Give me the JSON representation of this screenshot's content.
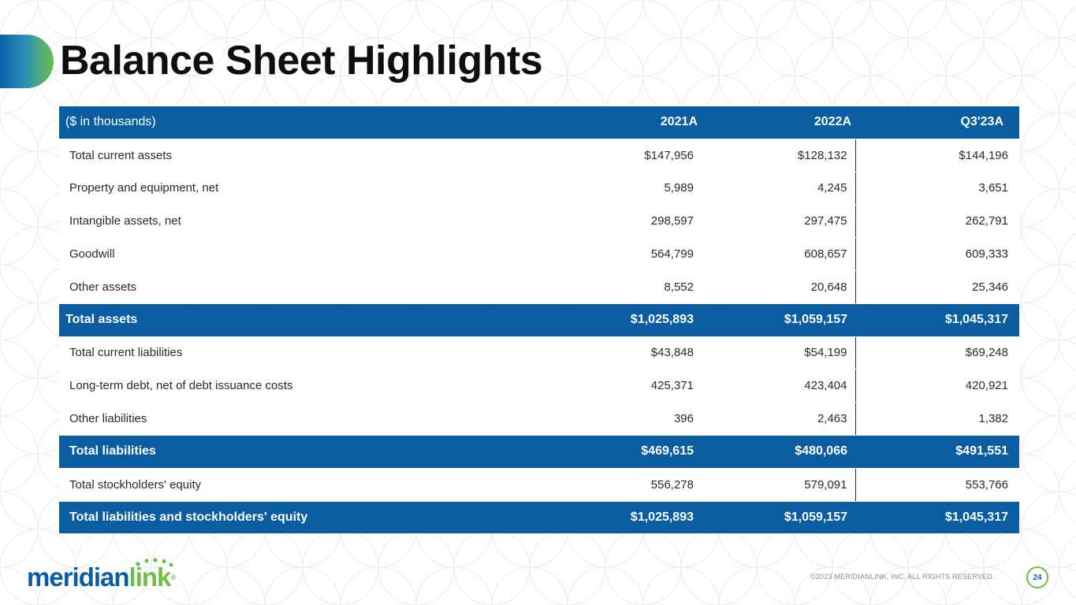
{
  "slide": {
    "title": "Balance Sheet Highlights",
    "copyright": "©2023 MERIDIANLINK, INC. ALL RIGHTS RESERVED.",
    "page_number": "24",
    "logo": {
      "text_primary": "meridian",
      "text_secondary": "link",
      "trademark": "®"
    },
    "colors": {
      "brand_blue": "#0b5da2",
      "brand_green": "#6cc04a"
    }
  },
  "table": {
    "header": {
      "label": "($ in thousands)",
      "columns": [
        "2021A",
        "2022A",
        "Q3'23A"
      ]
    },
    "rows": [
      {
        "label": "Total current assets",
        "values": [
          "$147,956",
          "$128,132",
          "$144,196"
        ],
        "total": false
      },
      {
        "label": "Property and equipment, net",
        "values": [
          "5,989",
          "4,245",
          "3,651"
        ],
        "total": false
      },
      {
        "label": "Intangible assets, net",
        "values": [
          "298,597",
          "297,475",
          "262,791"
        ],
        "total": false
      },
      {
        "label": "Goodwill",
        "values": [
          "564,799",
          "608,657",
          "609,333"
        ],
        "total": false
      },
      {
        "label": "Other assets",
        "values": [
          "8,552",
          "20,648",
          "25,346"
        ],
        "total": false
      },
      {
        "label": "Total assets",
        "values": [
          "$1,025,893",
          "$1,059,157",
          "$1,045,317"
        ],
        "total": true
      },
      {
        "label": "Total current liabilities",
        "values": [
          "$43,848",
          "$54,199",
          "$69,248"
        ],
        "total": false
      },
      {
        "label": "Long-term debt, net of debt issuance costs",
        "values": [
          "425,371",
          "423,404",
          "420,921"
        ],
        "total": false
      },
      {
        "label": "Other liabilities",
        "values": [
          "396",
          "2,463",
          "1,382"
        ],
        "total": false
      },
      {
        "label": "Total liabilities",
        "values": [
          "$469,615",
          "$480,066",
          "$491,551"
        ],
        "total": true
      },
      {
        "label": "Total stockholders' equity",
        "values": [
          "556,278",
          "579,091",
          "553,766"
        ],
        "total": false
      },
      {
        "label": "Total liabilities and stockholders' equity",
        "values": [
          "$1,025,893",
          "$1,059,157",
          "$1,045,317"
        ],
        "total": true
      }
    ]
  }
}
